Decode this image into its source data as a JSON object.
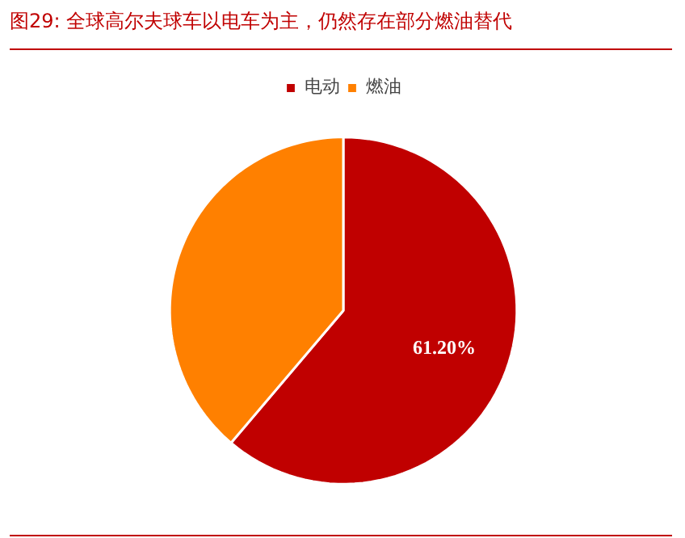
{
  "chart_data": {
    "type": "pie",
    "title": "图29:    全球高尔夫球车以电车为主，仍然存在部分燃油替代",
    "categories": [
      "电动",
      "燃油"
    ],
    "values": [
      61.2,
      38.8
    ],
    "colors": [
      "#c00000",
      "#ff8000"
    ],
    "value_labels": [
      "61.20%",
      null
    ],
    "legend": "top"
  }
}
